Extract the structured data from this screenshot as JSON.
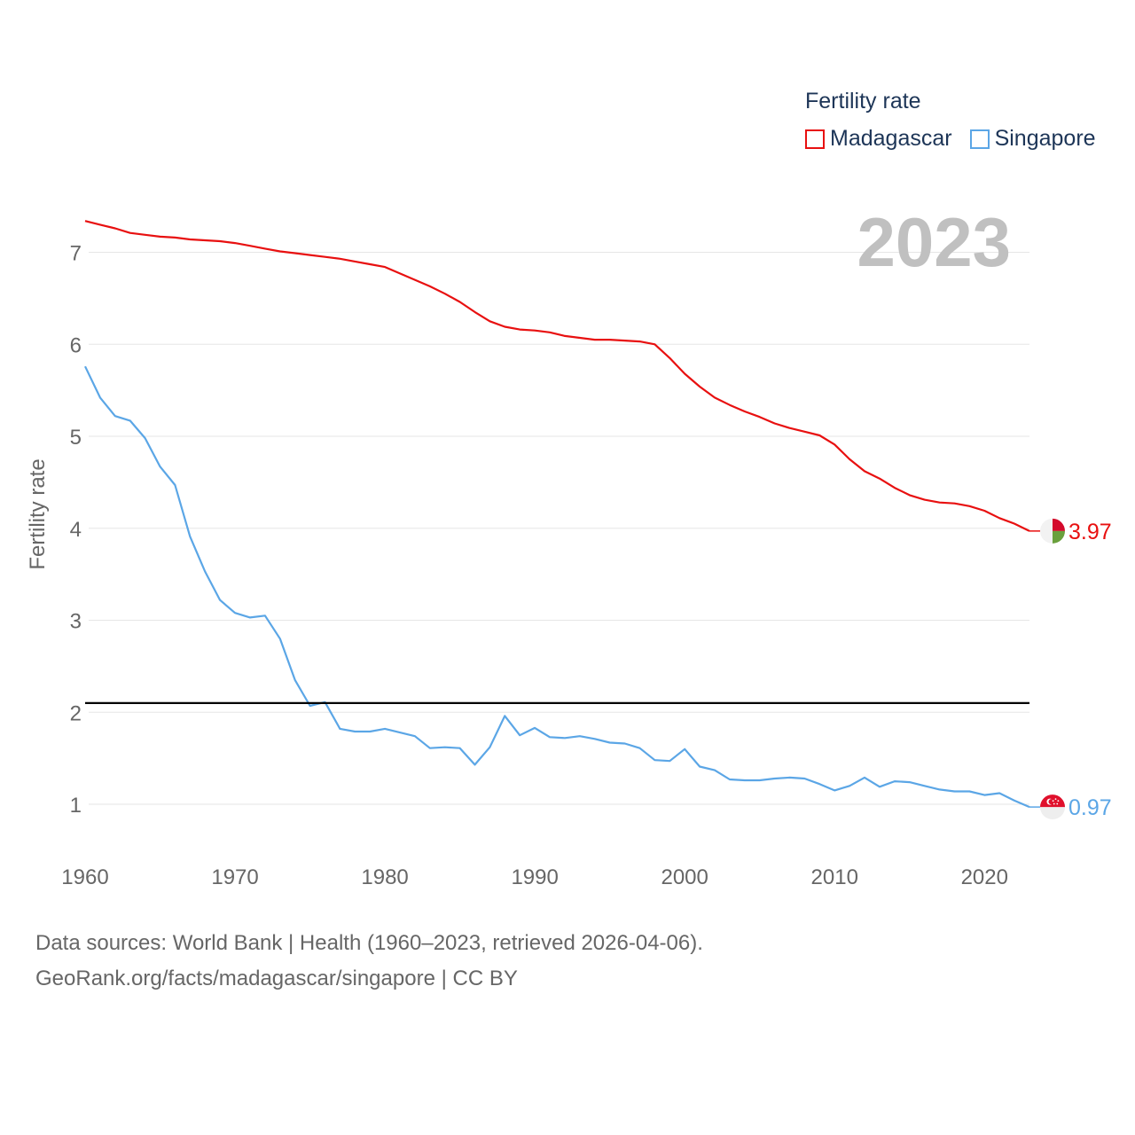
{
  "legend": {
    "title": "Fertility rate",
    "items": [
      {
        "label": "Madagascar",
        "color": "#e81010"
      },
      {
        "label": "Singapore",
        "color": "#5ba6e6"
      }
    ]
  },
  "footer": {
    "line1": "Data sources: World Bank | Health (1960–2023, retrieved 2026-04-06).",
    "line2": "GeoRank.org/facts/madagascar/singapore | CC BY"
  },
  "chart_data": {
    "type": "line",
    "title": "Fertility rate",
    "year_label": "2023",
    "ylabel": "Fertility rate",
    "xlabel": "",
    "xlim": [
      1960,
      2023
    ],
    "ylim": [
      0.5,
      7.5
    ],
    "x_ticks": [
      1960,
      1970,
      1980,
      1990,
      2000,
      2010,
      2020
    ],
    "y_ticks": [
      1,
      2,
      3,
      4,
      5,
      6,
      7
    ],
    "grid": true,
    "reference_line": {
      "y": 2.1,
      "color": "#000000"
    },
    "x": [
      1960,
      1961,
      1962,
      1963,
      1964,
      1965,
      1966,
      1967,
      1968,
      1969,
      1970,
      1971,
      1972,
      1973,
      1974,
      1975,
      1976,
      1977,
      1978,
      1979,
      1980,
      1981,
      1982,
      1983,
      1984,
      1985,
      1986,
      1987,
      1988,
      1989,
      1990,
      1991,
      1992,
      1993,
      1994,
      1995,
      1996,
      1997,
      1998,
      1999,
      2000,
      2001,
      2002,
      2003,
      2004,
      2005,
      2006,
      2007,
      2008,
      2009,
      2010,
      2011,
      2012,
      2013,
      2014,
      2015,
      2016,
      2017,
      2018,
      2019,
      2020,
      2021,
      2022,
      2023
    ],
    "series": [
      {
        "name": "Madagascar",
        "color": "#e81010",
        "end_label": "3.97",
        "values": [
          7.34,
          7.3,
          7.26,
          7.21,
          7.19,
          7.17,
          7.16,
          7.14,
          7.13,
          7.12,
          7.1,
          7.07,
          7.04,
          7.01,
          6.99,
          6.97,
          6.95,
          6.93,
          6.9,
          6.87,
          6.84,
          6.77,
          6.7,
          6.63,
          6.55,
          6.46,
          6.35,
          6.25,
          6.19,
          6.16,
          6.15,
          6.13,
          6.09,
          6.07,
          6.05,
          6.05,
          6.04,
          6.03,
          6.0,
          5.85,
          5.68,
          5.54,
          5.42,
          5.34,
          5.27,
          5.21,
          5.14,
          5.09,
          5.05,
          5.01,
          4.91,
          4.75,
          4.62,
          4.54,
          4.44,
          4.36,
          4.31,
          4.28,
          4.27,
          4.24,
          4.19,
          4.11,
          4.05,
          3.97
        ]
      },
      {
        "name": "Singapore",
        "color": "#5ba6e6",
        "end_label": "0.97",
        "values": [
          5.76,
          5.42,
          5.22,
          5.17,
          4.98,
          4.67,
          4.47,
          3.91,
          3.53,
          3.22,
          3.08,
          3.03,
          3.05,
          2.8,
          2.35,
          2.07,
          2.11,
          1.82,
          1.79,
          1.79,
          1.82,
          1.78,
          1.74,
          1.61,
          1.62,
          1.61,
          1.43,
          1.62,
          1.96,
          1.75,
          1.83,
          1.73,
          1.72,
          1.74,
          1.71,
          1.67,
          1.66,
          1.61,
          1.48,
          1.47,
          1.6,
          1.41,
          1.37,
          1.27,
          1.26,
          1.26,
          1.28,
          1.29,
          1.28,
          1.22,
          1.15,
          1.2,
          1.29,
          1.19,
          1.25,
          1.24,
          1.2,
          1.16,
          1.14,
          1.14,
          1.1,
          1.12,
          1.04,
          0.97
        ]
      }
    ]
  }
}
